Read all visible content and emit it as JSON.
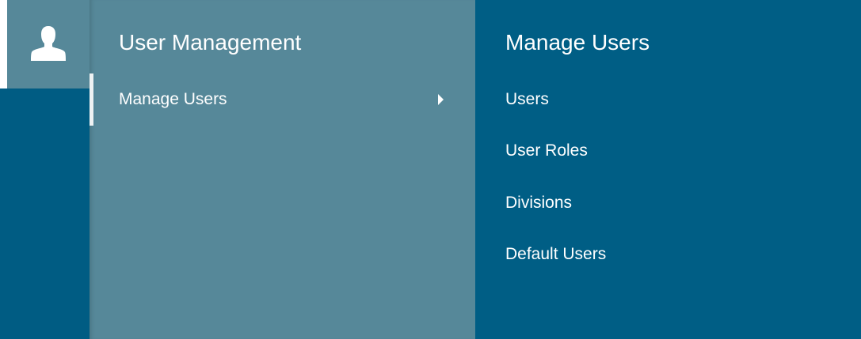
{
  "rail": {
    "icon": "user-icon"
  },
  "menu": {
    "title": "User Management",
    "items": [
      {
        "label": "Manage Users",
        "active": true,
        "icon": "caret-right-icon"
      }
    ]
  },
  "submenu": {
    "title": "Manage Users",
    "items": [
      {
        "label": "Users"
      },
      {
        "label": "User Roles"
      },
      {
        "label": "Divisions"
      },
      {
        "label": "Default Users"
      }
    ]
  },
  "colors": {
    "rail": "#005c83",
    "menu": "#568899",
    "submenu": "#005e85"
  }
}
